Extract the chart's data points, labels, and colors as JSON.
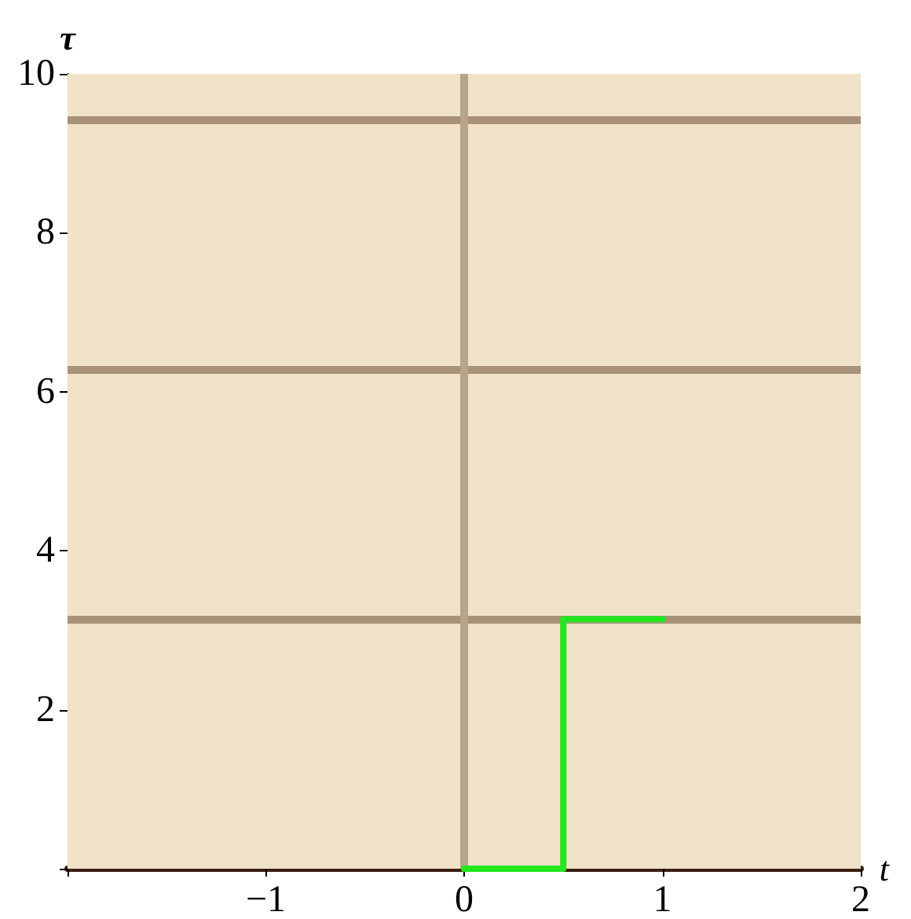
{
  "chart_data": {
    "type": "line",
    "xlabel": "t",
    "ylabel": "τ",
    "x": [
      0,
      0.5,
      0.5,
      1
    ],
    "series": [
      {
        "color": "#22e61e",
        "values": [
          0,
          0,
          3.14,
          3.14
        ]
      }
    ],
    "xlim": [
      -2,
      2
    ],
    "xticks": [
      {
        "value": -2,
        "label": null
      },
      -1,
      0,
      1,
      2
    ],
    "ylim": [
      0,
      10
    ],
    "yticks": [
      {
        "value": 0,
        "label": null
      },
      2,
      4,
      6,
      8,
      10
    ],
    "bands": [
      {
        "axis": "y",
        "from": 0,
        "to": 10,
        "color": "#f0e2c8"
      }
    ],
    "ref_lines": [
      {
        "axis": "y",
        "value": 3.14,
        "color": "#a89278"
      },
      {
        "axis": "y",
        "value": 6.28,
        "color": "#a89278"
      },
      {
        "axis": "y",
        "value": 9.42,
        "color": "#a89278"
      },
      {
        "axis": "x",
        "value": 0,
        "color": "#b8a48a"
      }
    ],
    "grid": false,
    "marker": "none",
    "line_style": "solid"
  }
}
